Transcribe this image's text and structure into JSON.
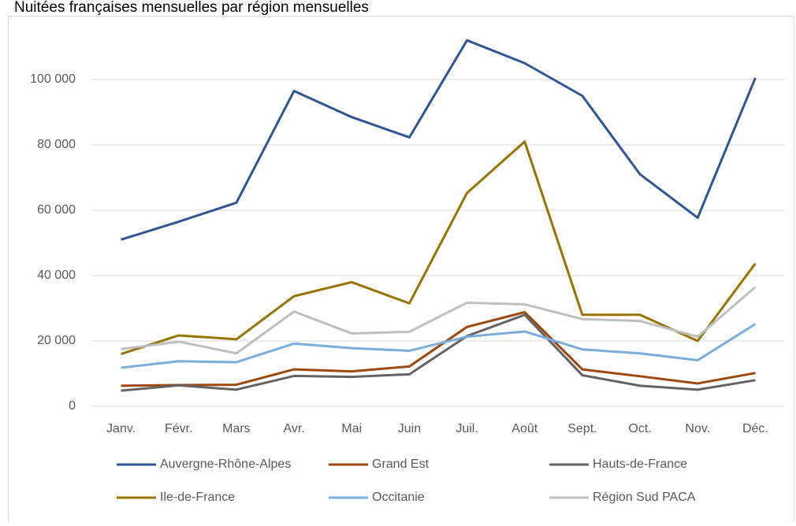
{
  "chart_data": {
    "type": "line",
    "title": "Nuitées françaises mensuelles par région mensuelles",
    "categories": [
      "Janv.",
      "Févr.",
      "Mars",
      "Avr.",
      "Mai",
      "Juin",
      "Juil.",
      "Août",
      "Sept.",
      "Oct.",
      "Nov.",
      "Déc."
    ],
    "series": [
      {
        "name": "Auvergne-Rhône-Alpes",
        "color": "#2f5597",
        "values": [
          51000,
          56500,
          62300,
          96500,
          88500,
          82300,
          112000,
          105000,
          95000,
          71000,
          57700,
          100500
        ]
      },
      {
        "name": "Grand Est",
        "color": "#9e480e",
        "values": [
          6300,
          6500,
          6600,
          11300,
          10700,
          12200,
          24300,
          28800,
          11300,
          9200,
          7000,
          10200
        ]
      },
      {
        "name": "Hauts-de-France",
        "color": "#636363",
        "values": [
          4800,
          6400,
          5100,
          9300,
          9000,
          9800,
          21500,
          28000,
          9500,
          6300,
          5100,
          8000
        ]
      },
      {
        "name": "Ile-de-France",
        "color": "#997300",
        "values": [
          16000,
          21700,
          20500,
          33700,
          38000,
          31500,
          65300,
          81000,
          28000,
          28000,
          20000,
          43700
        ]
      },
      {
        "name": "Occitanie",
        "color": "#7aaedc",
        "values": [
          11800,
          13800,
          13500,
          19200,
          17800,
          17000,
          21300,
          22900,
          17400,
          16200,
          14100,
          25200
        ]
      },
      {
        "name": "Région Sud PACA",
        "color": "#bfbfbf",
        "values": [
          17500,
          19800,
          16200,
          29000,
          22300,
          22800,
          31700,
          31200,
          26700,
          26100,
          21300,
          36500
        ]
      }
    ],
    "ylim": [
      0,
      120000
    ],
    "yticks": [
      0,
      {
        "value": 20000,
        "label": "20 000"
      },
      {
        "value": 40000,
        "label": "40 000"
      },
      {
        "value": 60000,
        "label": "60 000"
      },
      {
        "value": 80000,
        "label": "80 000"
      },
      {
        "value": 100000,
        "label": "100 000"
      }
    ],
    "grid": true
  }
}
